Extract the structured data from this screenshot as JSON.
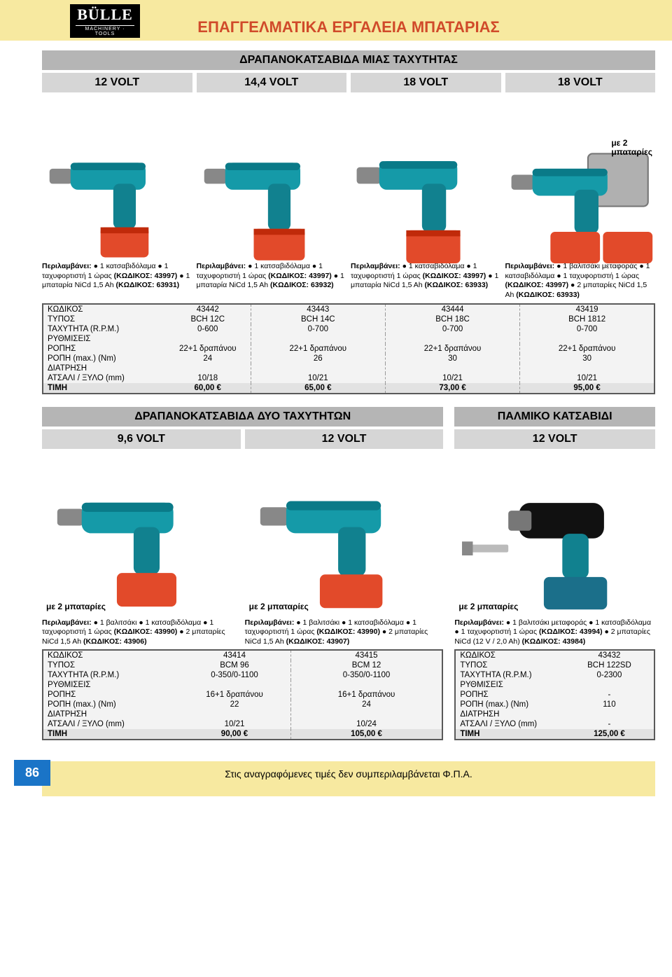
{
  "brand": {
    "name": "BÜLLE",
    "sub": "MACHINERY · TOOLS"
  },
  "pageTitle": "ΕΠΑΓΓΕΛΜΑΤΙΚΑ ΕΡΓΑΛΕΙΑ ΜΠΑΤΑΡΙΑΣ",
  "footer": "Στις αναγραφόμενες τιμές δεν συμπεριλαμβάνεται Φ.Π.Α.",
  "pageNumber": "86",
  "colors": {
    "headerBg": "#f7e9a0",
    "titleRed": "#d04a2a",
    "grayBar": "#b5b5b5",
    "voltBar": "#d6d6d6",
    "tableBg": "#f3f3f3",
    "tableBorder": "#5a5a5a",
    "drillBody": "#159aa8",
    "drillDark": "#0a4a55",
    "battery": "#e24a2a",
    "pageNumBg": "#1a74c7"
  },
  "section1": {
    "title": "ΔΡΑΠΑΝΟΚΑΤΣΑΒΙΔΑ ΜΙΑΣ ΤΑΧΥΤΗΤΑΣ",
    "volts": [
      "12 VOLT",
      "14,4 VOLT",
      "18 VOLT",
      "18 VOLT"
    ],
    "note4": "με 2\nμπαταρίες",
    "includes": [
      "Περιλαμβάνει: ● 1 κατσαβιδόλαμα ● 1 ταχυφορτιστή 1 ώρας (ΚΩΔΙΚΟΣ: 43997) ● 1 μπαταρία NiCd 1,5 Ah (ΚΩΔΙΚΟΣ: 63931)",
      "Περιλαμβάνει: ● 1 κατσαβιδόλαμα ● 1 ταχυφορτιστή 1 ώρας (ΚΩΔΙΚΟΣ: 43997) ● 1 μπαταρία NiCd 1,5 Ah (ΚΩΔΙΚΟΣ: 63932)",
      "Περιλαμβάνει: ● 1 κατσαβιδόλαμα ● 1 ταχυφορτιστή 1 ώρας (ΚΩΔΙΚΟΣ: 43997) ● 1 μπαταρία NiCd 1,5 Ah (ΚΩΔΙΚΟΣ: 63933)",
      "Περιλαμβάνει: ● 1 βαλιτσάκι μεταφοράς ● 1 κατσαβιδόλαμα ● 1 ταχυφορτιστή 1 ώρας (ΚΩΔΙΚΟΣ: 43997) ● 2 μπαταρίες NiCd 1,5 Ah (ΚΩΔΙΚΟΣ: 63933)"
    ],
    "table": {
      "rows": [
        {
          "l": "ΚΩΔΙΚΟΣ",
          "v": [
            "43442",
            "43443",
            "43444",
            "43419"
          ]
        },
        {
          "l": "ΤΥΠΟΣ",
          "v": [
            "BCH 12C",
            "BCH 14C",
            "BCH 18C",
            "BCH 1812"
          ]
        },
        {
          "l": "ΤΑΧΥΤΗΤΑ (R.P.M.)",
          "v": [
            "0-600",
            "0-700",
            "0-700",
            "0-700"
          ]
        },
        {
          "l": "ΡΥΘΜΙΣΕΙΣ",
          "v": [
            "",
            "",
            "",
            ""
          ]
        },
        {
          "l": "ΡΟΠΗΣ",
          "v": [
            "22+1 δραπάνου",
            "22+1 δραπάνου",
            "22+1 δραπάνου",
            "22+1 δραπάνου"
          ]
        },
        {
          "l": "ΡΟΠΗ (max.) (Nm)",
          "v": [
            "24",
            "26",
            "30",
            "30"
          ]
        },
        {
          "l": "ΔΙΑΤΡΗΣΗ",
          "v": [
            "",
            "",
            "",
            ""
          ]
        },
        {
          "l": "ΑΤΣΑΛΙ / ΞΥΛΟ (mm)",
          "v": [
            "10/18",
            "10/21",
            "10/21",
            "10/21"
          ]
        }
      ],
      "price": {
        "l": "ΤΙΜΗ",
        "v": [
          "60,00 €",
          "65,00 €",
          "73,00 €",
          "95,00 €"
        ]
      }
    }
  },
  "section2a": {
    "title": "ΔΡΑΠΑΝΟΚΑΤΣΑΒΙΔΑ ΔΥΟ ΤΑΧΥΤΗΤΩΝ",
    "volts": [
      "9,6 VOLT",
      "12 VOLT"
    ],
    "note": "με 2 μπαταρίες",
    "includes": [
      "Περιλαμβάνει: ● 1 βαλιτσάκι ● 1 κατσαβιδόλαμα ● 1 ταχυφορτιστή 1 ώρας (ΚΩΔΙΚΟΣ: 43990) ● 2 μπαταρίες NiCd 1,5 Ah (ΚΩΔΙΚΟΣ: 43906)",
      "Περιλαμβάνει: ● 1 βαλιτσάκι ● 1 κατσαβιδόλαμα ● 1 ταχυφορτιστή 1 ώρας (ΚΩΔΙΚΟΣ: 43990) ● 2 μπαταρίες NiCd 1,5 Ah (ΚΩΔΙΚΟΣ: 43907)"
    ],
    "table": {
      "rows": [
        {
          "l": "ΚΩΔΙΚΟΣ",
          "v": [
            "43414",
            "43415"
          ]
        },
        {
          "l": "ΤΥΠΟΣ",
          "v": [
            "BCM 96",
            "BCM 12"
          ]
        },
        {
          "l": "ΤΑΧΥΤΗΤΑ (R.P.M.)",
          "v": [
            "0-350/0-1100",
            "0-350/0-1100"
          ]
        },
        {
          "l": "ΡΥΘΜΙΣΕΙΣ",
          "v": [
            "",
            ""
          ]
        },
        {
          "l": "ΡΟΠΗΣ",
          "v": [
            "16+1 δραπάνου",
            "16+1 δραπάνου"
          ]
        },
        {
          "l": "ΡΟΠΗ (max.) (Nm)",
          "v": [
            "22",
            "24"
          ]
        },
        {
          "l": "ΔΙΑΤΡΗΣΗ",
          "v": [
            "",
            ""
          ]
        },
        {
          "l": "ΑΤΣΑΛΙ / ΞΥΛΟ (mm)",
          "v": [
            "10/21",
            "10/24"
          ]
        }
      ],
      "price": {
        "l": "ΤΙΜΗ",
        "v": [
          "90,00 €",
          "105,00 €"
        ]
      }
    }
  },
  "section2b": {
    "title": "ΠΑΛΜΙΚΟ ΚΑΤΣΑΒΙΔΙ",
    "volts": [
      "12 VOLT"
    ],
    "note": "με 2 μπαταρίες",
    "includes": [
      "Περιλαμβάνει: ● 1 βαλιτσάκι μεταφοράς ● 1 κατσαβιδόλαμα ● 1 ταχυφορτιστή 1 ώρας (ΚΩΔΙΚΟΣ: 43994) ● 2 μπαταρίες NiCd (12 V / 2,0 Ah) (ΚΩΔΙΚΟΣ: 43984)"
    ],
    "table": {
      "rows": [
        {
          "l": "ΚΩΔΙΚΟΣ",
          "v": [
            "43432"
          ]
        },
        {
          "l": "ΤΥΠΟΣ",
          "v": [
            "BCH 122SD"
          ]
        },
        {
          "l": "ΤΑΧΥΤΗΤΑ (R.P.M.)",
          "v": [
            "0-2300"
          ]
        },
        {
          "l": "ΡΥΘΜΙΣΕΙΣ",
          "v": [
            ""
          ]
        },
        {
          "l": "ΡΟΠΗΣ",
          "v": [
            "-"
          ]
        },
        {
          "l": "ΡΟΠΗ (max.) (Nm)",
          "v": [
            "110"
          ]
        },
        {
          "l": "ΔΙΑΤΡΗΣΗ",
          "v": [
            ""
          ]
        },
        {
          "l": "ΑΤΣΑΛΙ / ΞΥΛΟ (mm)",
          "v": [
            "-"
          ]
        }
      ],
      "price": {
        "l": "ΤΙΜΗ",
        "v": [
          "125,00 €"
        ]
      }
    }
  }
}
